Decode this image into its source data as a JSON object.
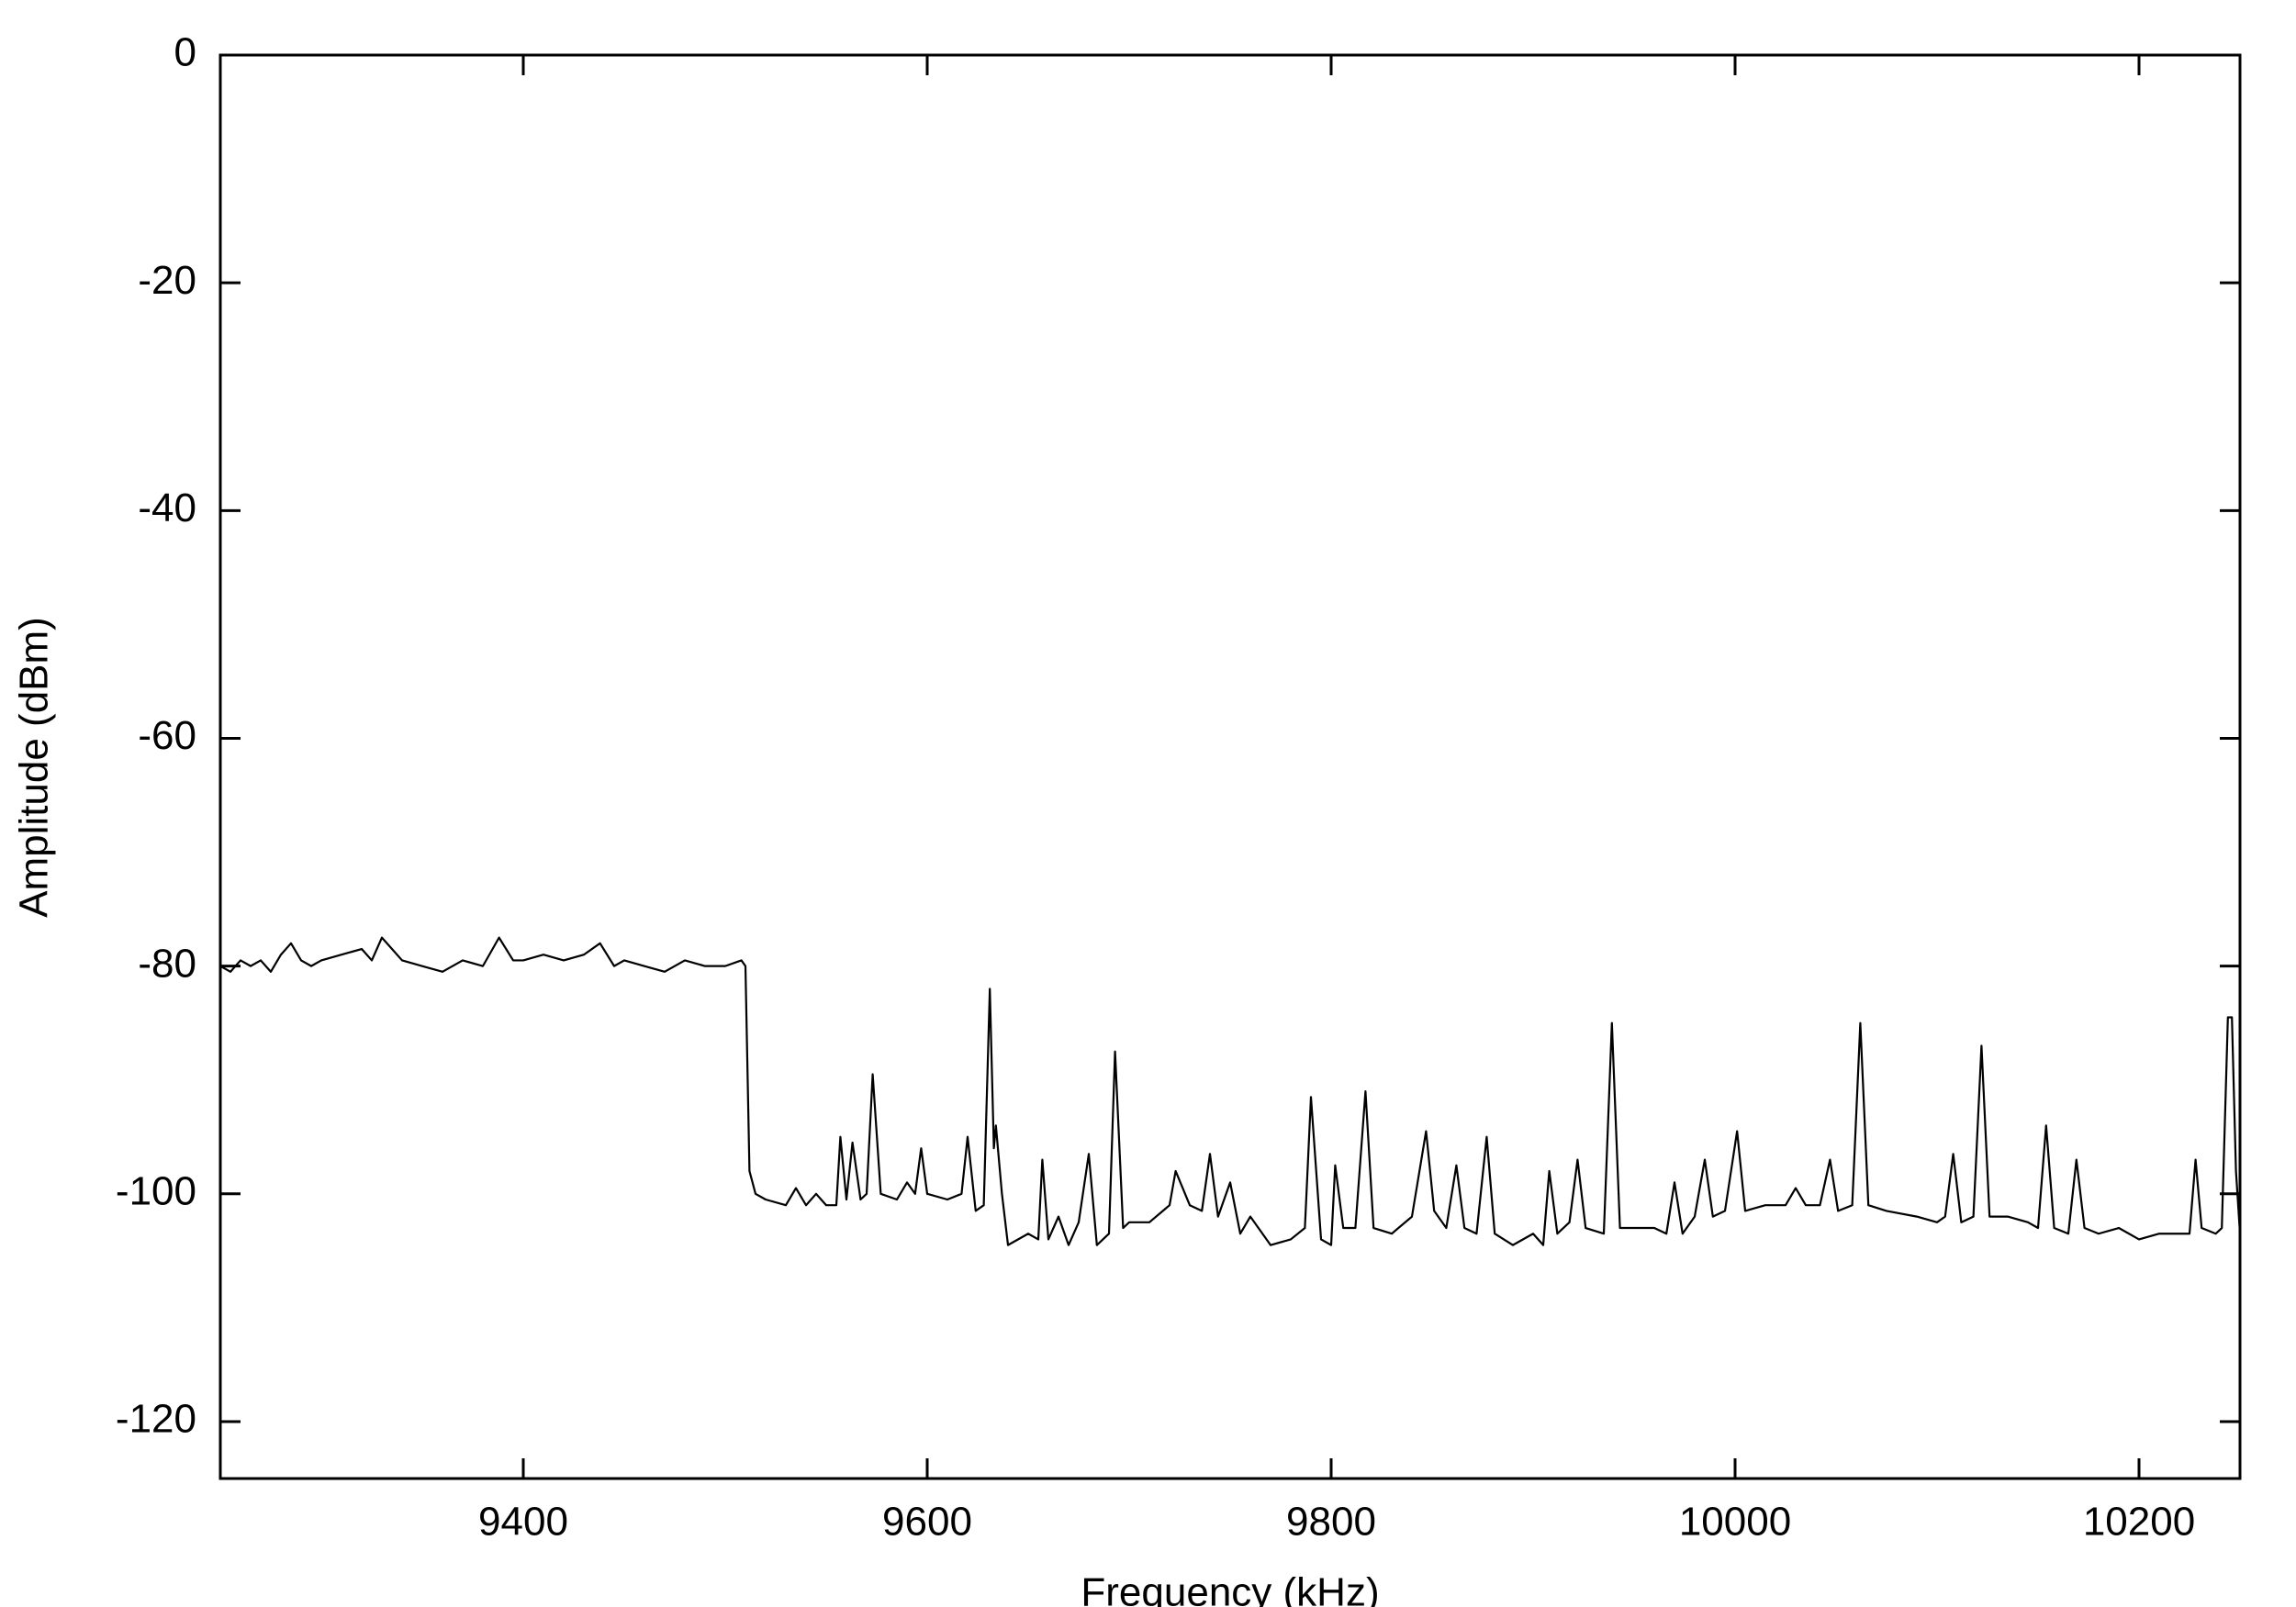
{
  "chart_data": {
    "type": "line",
    "xlabel": "Frequency (kHz)",
    "ylabel": "Amplitude (dBm)",
    "xlim": [
      9250,
      10250
    ],
    "xticks": [
      9400,
      9600,
      9800,
      10000,
      10200
    ],
    "ylim": [
      -125,
      0
    ],
    "yticks": [
      0,
      -20,
      -40,
      -60,
      -80,
      -100,
      -120
    ],
    "color": "#000000",
    "x": [
      9250,
      9255,
      9260,
      9265,
      9270,
      9275,
      9280,
      9285,
      9290,
      9295,
      9300,
      9310,
      9320,
      9325,
      9330,
      9340,
      9350,
      9360,
      9370,
      9380,
      9388,
      9395,
      9400,
      9410,
      9420,
      9430,
      9438,
      9445,
      9450,
      9460,
      9470,
      9480,
      9490,
      9500,
      9508,
      9510,
      9512,
      9515,
      9520,
      9530,
      9535,
      9540,
      9545,
      9550,
      9555,
      9557,
      9560,
      9563,
      9567,
      9570,
      9573,
      9577,
      9585,
      9590,
      9594,
      9597,
      9600,
      9610,
      9617,
      9620,
      9624,
      9628,
      9631,
      9633,
      9634,
      9637,
      9640,
      9650,
      9655,
      9657,
      9660,
      9665,
      9670,
      9675,
      9680,
      9684,
      9690,
      9693,
      9697,
      9700,
      9710,
      9720,
      9723,
      9730,
      9736,
      9740,
      9744,
      9750,
      9755,
      9760,
      9770,
      9780,
      9787,
      9790,
      9795,
      9800,
      9802,
      9806,
      9812,
      9817,
      9821,
      9830,
      9840,
      9847,
      9851,
      9857,
      9862,
      9866,
      9872,
      9877,
      9881,
      9890,
      9900,
      9905,
      9908,
      9912,
      9918,
      9922,
      9926,
      9935,
      9939,
      9943,
      9950,
      9960,
      9966,
      9970,
      9974,
      9980,
      9985,
      9989,
      9995,
      10001,
      10005,
      10015,
      10025,
      10030,
      10035,
      10042,
      10047,
      10051,
      10058,
      10062,
      10066,
      10075,
      10090,
      10100,
      10104,
      10108,
      10112,
      10118,
      10122,
      10126,
      10135,
      10145,
      10150,
      10154,
      10158,
      10165,
      10169,
      10173,
      10180,
      10190,
      10200,
      10210,
      10220,
      10225,
      10228,
      10231,
      10238,
      10241,
      10244,
      10246,
      10248,
      10250
    ],
    "values": [
      -80,
      -80.5,
      -79.5,
      -80,
      -79.5,
      -80.5,
      -79,
      -78,
      -79.5,
      -80,
      -79.5,
      -79,
      -78.5,
      -79.5,
      -77.5,
      -79.5,
      -80,
      -80.5,
      -79.5,
      -80,
      -77.5,
      -79.5,
      -79.5,
      -79,
      -79.5,
      -79,
      -78,
      -80,
      -79.5,
      -80,
      -80.5,
      -79.5,
      -80,
      -80,
      -79.5,
      -80,
      -98,
      -100,
      -100.5,
      -101,
      -99.5,
      -101,
      -100,
      -101,
      -101,
      -95,
      -100.5,
      -95.5,
      -100.5,
      -100,
      -89.5,
      -100,
      -100.5,
      -99,
      -100,
      -96,
      -100,
      -100.5,
      -100,
      -95,
      -101.5,
      -101,
      -82,
      -96,
      -94,
      -100,
      -104.5,
      -103.5,
      -104,
      -97,
      -104,
      -102,
      -104.5,
      -102.5,
      -96.5,
      -104.5,
      -103.5,
      -87.5,
      -103,
      -102.5,
      -102.5,
      -101,
      -98,
      -101,
      -101.5,
      -96.5,
      -102,
      -99,
      -103.5,
      -102,
      -104.5,
      -104,
      -103,
      -91.5,
      -104,
      -104.5,
      -97.5,
      -103,
      -103,
      -91,
      -103,
      -103.5,
      -102,
      -94.5,
      -101.5,
      -103,
      -97.5,
      -103,
      -103.5,
      -95,
      -103.5,
      -104.5,
      -103.5,
      -104.5,
      -98,
      -103.5,
      -102.5,
      -97,
      -103,
      -103.5,
      -85,
      -103,
      -103,
      -103,
      -103.5,
      -99,
      -103.5,
      -102,
      -97,
      -102,
      -101.5,
      -94.5,
      -101.5,
      -101,
      -101,
      -99.5,
      -101,
      -101,
      -97,
      -101.5,
      -101,
      -85,
      -101,
      -101.5,
      -102,
      -102.5,
      -102,
      -96.5,
      -102.5,
      -102,
      -87,
      -102,
      -102,
      -102.5,
      -103,
      -94,
      -103,
      -103.5,
      -97,
      -103,
      -103.5,
      -103,
      -104,
      -103.5,
      -103.5,
      -103.5,
      -97,
      -103,
      -103.5,
      -103,
      -84.5,
      -84.5,
      -98,
      -103.5
    ]
  }
}
